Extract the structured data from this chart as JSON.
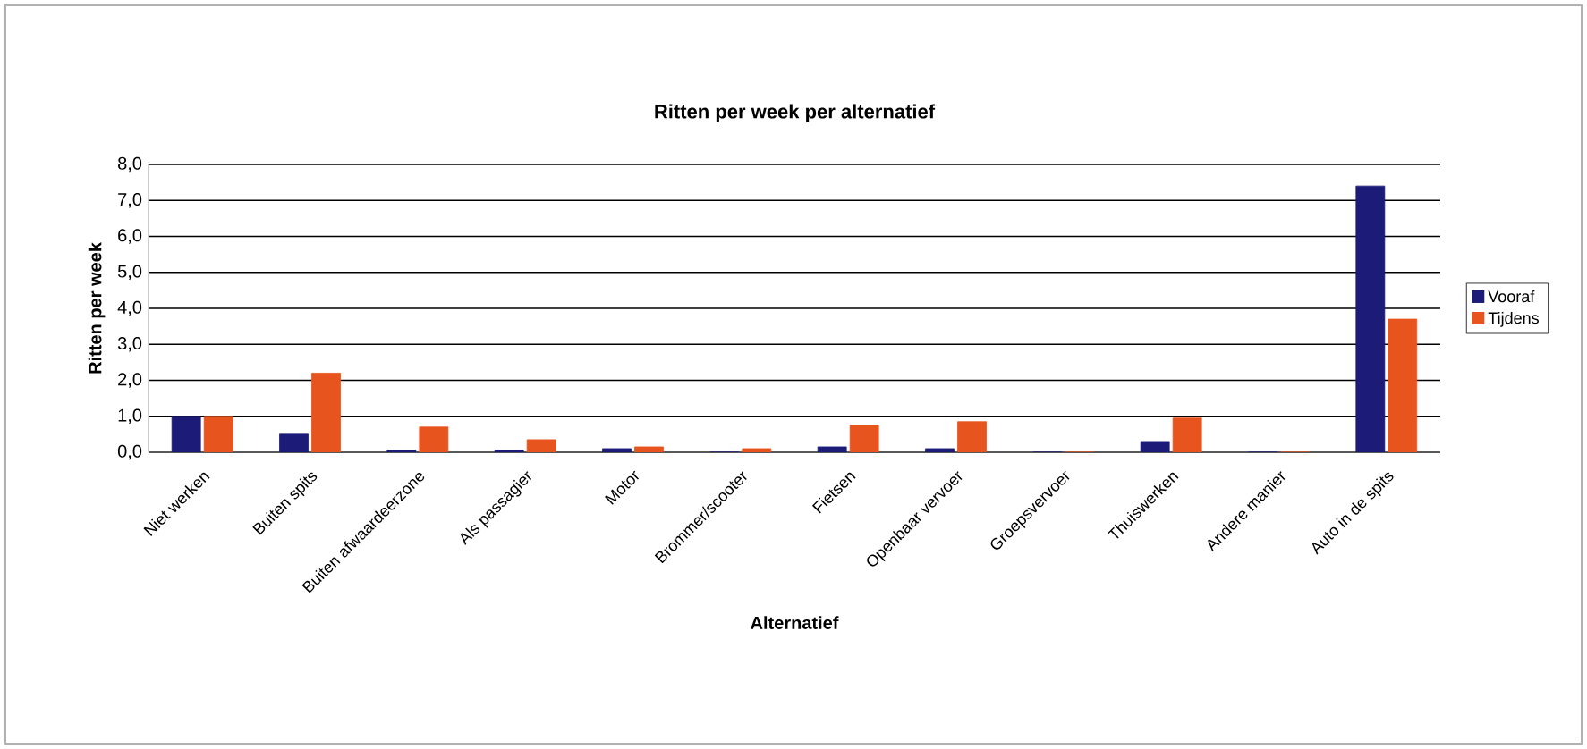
{
  "chart_data": {
    "type": "bar",
    "title": "Ritten per week per alternatief",
    "xlabel": "Alternatief",
    "ylabel": "Ritten per week",
    "categories": [
      "Niet werken",
      "Buiten spits",
      "Buiten afwaardeerzone",
      "Als passagier",
      "Motor",
      "Brommer/scooter",
      "Fietsen",
      "Openbaar vervoer",
      "Groepsvervoer",
      "Thuiswerken",
      "Andere manier",
      "Auto in de spits"
    ],
    "series": [
      {
        "name": "Vooraf",
        "color": "#1c1c78",
        "values": [
          1.0,
          0.5,
          0.05,
          0.05,
          0.1,
          0.0,
          0.15,
          0.1,
          0.0,
          0.3,
          0.0,
          7.4
        ]
      },
      {
        "name": "Tijdens",
        "color": "#e8541e",
        "values": [
          1.0,
          2.2,
          0.7,
          0.35,
          0.15,
          0.1,
          0.75,
          0.85,
          0.0,
          0.95,
          0.0,
          3.7
        ]
      }
    ],
    "ylim": [
      0,
      8
    ],
    "yticks": [
      {
        "value": 0,
        "label": "0,0"
      },
      {
        "value": 1,
        "label": "1,0"
      },
      {
        "value": 2,
        "label": "2,0"
      },
      {
        "value": 3,
        "label": "3,0"
      },
      {
        "value": 4,
        "label": "4,0"
      },
      {
        "value": 5,
        "label": "5,0"
      },
      {
        "value": 6,
        "label": "6,0"
      },
      {
        "value": 7,
        "label": "7,0"
      },
      {
        "value": 8,
        "label": "8,0"
      }
    ],
    "grid": "y",
    "legend": "right"
  }
}
